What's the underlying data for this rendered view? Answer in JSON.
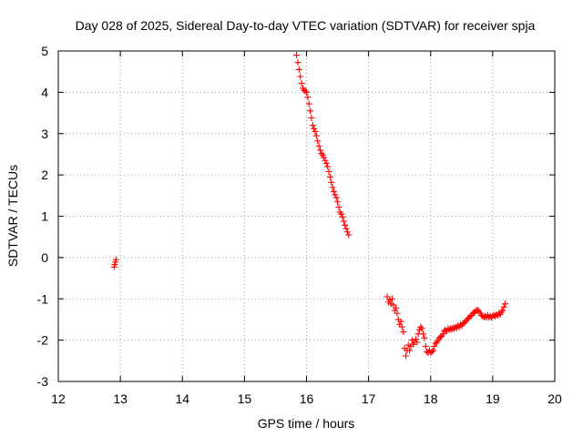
{
  "chart_data": {
    "type": "scatter",
    "title": "Day 028 of 2025, Sidereal Day-to-day VTEC variation (SDTVAR) for receiver spja",
    "xlabel": "GPS time / hours",
    "ylabel": "SDTVAR / TECUs",
    "xlim": [
      12,
      20
    ],
    "ylim": [
      -3,
      5
    ],
    "xticks": [
      12,
      13,
      14,
      15,
      16,
      17,
      18,
      19,
      20
    ],
    "yticks": [
      -3,
      -2,
      -1,
      0,
      1,
      2,
      3,
      4,
      5
    ],
    "grid": true,
    "series": [
      {
        "name": "SDTVAR",
        "color": "#ff0000",
        "marker": "plus",
        "points": [
          [
            12.9,
            -0.23
          ],
          [
            12.91,
            -0.17
          ],
          [
            12.92,
            -0.11
          ],
          [
            12.93,
            -0.05
          ],
          [
            15.84,
            4.9
          ],
          [
            15.86,
            4.72
          ],
          [
            15.88,
            4.55
          ],
          [
            15.9,
            4.38
          ],
          [
            15.92,
            4.22
          ],
          [
            15.94,
            4.1
          ],
          [
            15.96,
            4.05
          ],
          [
            15.98,
            4.03
          ],
          [
            16.0,
            4.0
          ],
          [
            16.02,
            3.88
          ],
          [
            16.04,
            3.72
          ],
          [
            16.06,
            3.55
          ],
          [
            16.08,
            3.38
          ],
          [
            16.1,
            3.2
          ],
          [
            16.12,
            3.12
          ],
          [
            16.14,
            3.05
          ],
          [
            16.16,
            2.95
          ],
          [
            16.18,
            2.82
          ],
          [
            16.2,
            2.7
          ],
          [
            16.22,
            2.6
          ],
          [
            16.24,
            2.52
          ],
          [
            16.26,
            2.48
          ],
          [
            16.28,
            2.42
          ],
          [
            16.3,
            2.35
          ],
          [
            16.32,
            2.28
          ],
          [
            16.34,
            2.2
          ],
          [
            16.36,
            2.08
          ],
          [
            16.38,
            1.95
          ],
          [
            16.4,
            1.82
          ],
          [
            16.42,
            1.7
          ],
          [
            16.44,
            1.6
          ],
          [
            16.46,
            1.52
          ],
          [
            16.48,
            1.45
          ],
          [
            16.5,
            1.35
          ],
          [
            16.52,
            1.22
          ],
          [
            16.54,
            1.1
          ],
          [
            16.56,
            1.05
          ],
          [
            16.58,
            0.98
          ],
          [
            16.6,
            0.88
          ],
          [
            16.62,
            0.78
          ],
          [
            16.64,
            0.7
          ],
          [
            16.66,
            0.62
          ],
          [
            16.68,
            0.55
          ],
          [
            17.3,
            -0.95
          ],
          [
            17.32,
            -1.08
          ],
          [
            17.34,
            -1.02
          ],
          [
            17.36,
            -1.12
          ],
          [
            17.38,
            -1.0
          ],
          [
            17.4,
            -1.15
          ],
          [
            17.42,
            -1.28
          ],
          [
            17.44,
            -1.22
          ],
          [
            17.46,
            -1.35
          ],
          [
            17.48,
            -1.5
          ],
          [
            17.5,
            -1.62
          ],
          [
            17.52,
            -1.55
          ],
          [
            17.54,
            -1.68
          ],
          [
            17.56,
            -1.8
          ],
          [
            17.58,
            -2.2
          ],
          [
            17.6,
            -2.38
          ],
          [
            17.62,
            -2.25
          ],
          [
            17.64,
            -2.12
          ],
          [
            17.66,
            -2.25
          ],
          [
            17.68,
            -2.15
          ],
          [
            17.7,
            -2.0
          ],
          [
            17.72,
            -2.1
          ],
          [
            17.74,
            -2.05
          ],
          [
            17.76,
            -1.98
          ],
          [
            17.78,
            -2.05
          ],
          [
            17.8,
            -1.85
          ],
          [
            17.82,
            -1.75
          ],
          [
            17.84,
            -1.68
          ],
          [
            17.86,
            -1.72
          ],
          [
            17.88,
            -1.85
          ],
          [
            17.9,
            -1.95
          ],
          [
            17.92,
            -2.15
          ],
          [
            17.94,
            -2.28
          ],
          [
            17.96,
            -2.3
          ],
          [
            17.98,
            -2.25
          ],
          [
            18.0,
            -2.3
          ],
          [
            18.02,
            -2.28
          ],
          [
            18.04,
            -2.25
          ],
          [
            18.06,
            -2.15
          ],
          [
            18.08,
            -2.08
          ],
          [
            18.1,
            -2.05
          ],
          [
            18.12,
            -2.0
          ],
          [
            18.14,
            -1.95
          ],
          [
            18.16,
            -1.92
          ],
          [
            18.18,
            -1.9
          ],
          [
            18.2,
            -1.85
          ],
          [
            18.22,
            -1.78
          ],
          [
            18.24,
            -1.75
          ],
          [
            18.26,
            -1.78
          ],
          [
            18.28,
            -1.72
          ],
          [
            18.3,
            -1.75
          ],
          [
            18.32,
            -1.72
          ],
          [
            18.34,
            -1.74
          ],
          [
            18.36,
            -1.7
          ],
          [
            18.38,
            -1.72
          ],
          [
            18.4,
            -1.68
          ],
          [
            18.42,
            -1.7
          ],
          [
            18.44,
            -1.65
          ],
          [
            18.46,
            -1.68
          ],
          [
            18.48,
            -1.62
          ],
          [
            18.5,
            -1.65
          ],
          [
            18.52,
            -1.6
          ],
          [
            18.54,
            -1.58
          ],
          [
            18.56,
            -1.55
          ],
          [
            18.58,
            -1.52
          ],
          [
            18.6,
            -1.48
          ],
          [
            18.62,
            -1.45
          ],
          [
            18.64,
            -1.42
          ],
          [
            18.66,
            -1.4
          ],
          [
            18.68,
            -1.35
          ],
          [
            18.7,
            -1.33
          ],
          [
            18.72,
            -1.3
          ],
          [
            18.74,
            -1.28
          ],
          [
            18.76,
            -1.28
          ],
          [
            18.78,
            -1.3
          ],
          [
            18.8,
            -1.35
          ],
          [
            18.82,
            -1.4
          ],
          [
            18.84,
            -1.42
          ],
          [
            18.86,
            -1.45
          ],
          [
            18.88,
            -1.42
          ],
          [
            18.9,
            -1.45
          ],
          [
            18.92,
            -1.4
          ],
          [
            18.94,
            -1.45
          ],
          [
            18.96,
            -1.42
          ],
          [
            18.98,
            -1.45
          ],
          [
            19.0,
            -1.42
          ],
          [
            19.02,
            -1.4
          ],
          [
            19.04,
            -1.42
          ],
          [
            19.06,
            -1.38
          ],
          [
            19.08,
            -1.4
          ],
          [
            19.1,
            -1.35
          ],
          [
            19.12,
            -1.38
          ],
          [
            19.14,
            -1.32
          ],
          [
            19.16,
            -1.28
          ],
          [
            19.18,
            -1.2
          ],
          [
            19.2,
            -1.12
          ]
        ]
      }
    ]
  }
}
